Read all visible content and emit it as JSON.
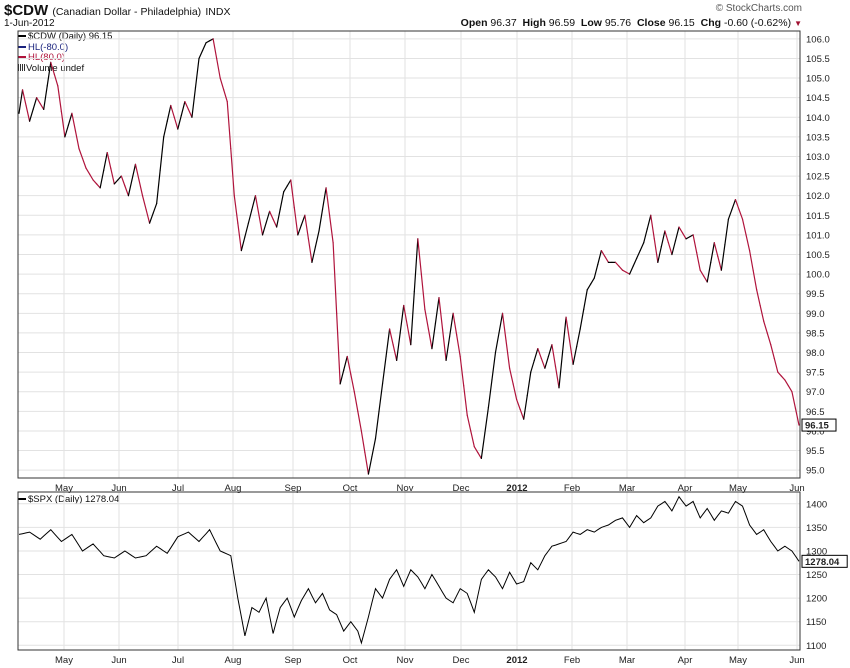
{
  "header": {
    "symbol": "$CDW",
    "name": "(Canadian Dollar - Philadelphia)",
    "exchange": "INDX",
    "date": "1-Jun-2012",
    "brand": "© StockCharts.com",
    "open_label": "Open",
    "open": "96.37",
    "high_label": "High",
    "high": "96.59",
    "low_label": "Low",
    "low": "95.76",
    "close_label": "Close",
    "close": "96.15",
    "chg_label": "Chg",
    "chg": "-0.60 (-0.62%)"
  },
  "legend": {
    "main": "$CDW (Daily) 96.15",
    "hl_down": "HL(-80.0)",
    "hl_up": "HL(80.0)",
    "volume": "Volume undef",
    "lower": "$SPX (Daily) 1278.04"
  },
  "colors": {
    "up": "#000000",
    "down": "#b0143c",
    "grid": "#e2e2e2",
    "frame": "#333333"
  },
  "chart_data": [
    {
      "type": "line",
      "series": [
        {
          "name": "$CDW (Daily)",
          "last": "96.15"
        }
      ],
      "ylim": [
        94.8,
        106.2
      ],
      "y_ticks": [
        "95.0",
        "95.5",
        "96.0",
        "96.5",
        "97.0",
        "97.5",
        "98.0",
        "98.5",
        "99.0",
        "99.5",
        "100.0",
        "100.5",
        "101.0",
        "101.5",
        "102.0",
        "102.5",
        "103.0",
        "103.5",
        "104.0",
        "104.5",
        "105.0",
        "105.5",
        "106.0"
      ],
      "x_ticks": [
        "May",
        "Jun",
        "Jul",
        "Aug",
        "Sep",
        "Oct",
        "Nov",
        "Dec",
        "2012",
        "Feb",
        "Mar",
        "Apr",
        "May",
        "Jun"
      ],
      "anchors": [
        [
          0,
          104.1
        ],
        [
          1,
          104.7
        ],
        [
          3,
          103.9
        ],
        [
          5,
          104.5
        ],
        [
          7,
          104.2
        ],
        [
          9,
          105.4
        ],
        [
          11,
          104.8
        ],
        [
          13,
          103.5
        ],
        [
          15,
          104.1
        ],
        [
          17,
          103.2
        ],
        [
          19,
          102.7
        ],
        [
          21,
          102.4
        ],
        [
          23,
          102.2
        ],
        [
          25,
          103.1
        ],
        [
          27,
          102.3
        ],
        [
          29,
          102.5
        ],
        [
          31,
          102.0
        ],
        [
          33,
          102.8
        ],
        [
          35,
          102.0
        ],
        [
          37,
          101.3
        ],
        [
          39,
          101.8
        ],
        [
          41,
          103.5
        ],
        [
          43,
          104.3
        ],
        [
          45,
          103.7
        ],
        [
          47,
          104.4
        ],
        [
          49,
          104.0
        ],
        [
          51,
          105.5
        ],
        [
          53,
          105.9
        ],
        [
          55,
          106.0
        ],
        [
          57,
          105.0
        ],
        [
          59,
          104.4
        ],
        [
          61,
          102.0
        ],
        [
          63,
          100.6
        ],
        [
          65,
          101.3
        ],
        [
          67,
          102.0
        ],
        [
          69,
          101.0
        ],
        [
          71,
          101.6
        ],
        [
          73,
          101.2
        ],
        [
          75,
          102.1
        ],
        [
          77,
          102.4
        ],
        [
          79,
          101.0
        ],
        [
          81,
          101.5
        ],
        [
          83,
          100.3
        ],
        [
          85,
          101.1
        ],
        [
          87,
          102.2
        ],
        [
          89,
          100.8
        ],
        [
          91,
          97.2
        ],
        [
          93,
          97.9
        ],
        [
          95,
          97.0
        ],
        [
          97,
          96.0
        ],
        [
          99,
          94.9
        ],
        [
          101,
          95.8
        ],
        [
          103,
          97.2
        ],
        [
          105,
          98.6
        ],
        [
          107,
          97.8
        ],
        [
          109,
          99.2
        ],
        [
          111,
          98.2
        ],
        [
          113,
          100.9
        ],
        [
          115,
          99.1
        ],
        [
          117,
          98.1
        ],
        [
          119,
          99.4
        ],
        [
          121,
          97.8
        ],
        [
          123,
          99.0
        ],
        [
          125,
          97.9
        ],
        [
          127,
          96.4
        ],
        [
          129,
          95.6
        ],
        [
          131,
          95.3
        ],
        [
          133,
          96.6
        ],
        [
          135,
          98.0
        ],
        [
          137,
          99.0
        ],
        [
          139,
          97.6
        ],
        [
          141,
          96.8
        ],
        [
          143,
          96.3
        ],
        [
          145,
          97.5
        ],
        [
          147,
          98.1
        ],
        [
          149,
          97.6
        ],
        [
          151,
          98.2
        ],
        [
          153,
          97.1
        ],
        [
          155,
          98.9
        ],
        [
          157,
          97.7
        ],
        [
          159,
          98.6
        ],
        [
          161,
          99.6
        ],
        [
          163,
          99.9
        ],
        [
          165,
          100.6
        ],
        [
          167,
          100.3
        ],
        [
          169,
          100.3
        ],
        [
          171,
          100.1
        ],
        [
          173,
          100.0
        ],
        [
          175,
          100.4
        ],
        [
          177,
          100.8
        ],
        [
          179,
          101.5
        ],
        [
          181,
          100.3
        ],
        [
          183,
          101.1
        ],
        [
          185,
          100.5
        ],
        [
          187,
          101.2
        ],
        [
          189,
          100.9
        ],
        [
          191,
          101.0
        ],
        [
          193,
          100.1
        ],
        [
          195,
          99.8
        ],
        [
          197,
          100.8
        ],
        [
          199,
          100.1
        ],
        [
          201,
          101.4
        ],
        [
          203,
          101.9
        ],
        [
          205,
          101.4
        ],
        [
          207,
          100.6
        ],
        [
          209,
          99.6
        ],
        [
          211,
          98.8
        ],
        [
          213,
          98.2
        ],
        [
          215,
          97.5
        ],
        [
          217,
          97.3
        ],
        [
          219,
          97.0
        ],
        [
          221,
          96.15
        ]
      ],
      "last_label": "96.15"
    },
    {
      "type": "line",
      "series": [
        {
          "name": "$SPX (Daily)",
          "last": "1278.04"
        }
      ],
      "ylim": [
        1090,
        1425
      ],
      "y_ticks": [
        "1100",
        "1150",
        "1200",
        "1250",
        "1300",
        "1350",
        "1400"
      ],
      "x_ticks": [
        "May",
        "Jun",
        "Jul",
        "Aug",
        "Sep",
        "Oct",
        "Nov",
        "Dec",
        "2012",
        "Feb",
        "Mar",
        "Apr",
        "May",
        "Jun"
      ],
      "anchors": [
        [
          0,
          1335
        ],
        [
          3,
          1340
        ],
        [
          6,
          1325
        ],
        [
          9,
          1345
        ],
        [
          12,
          1320
        ],
        [
          15,
          1335
        ],
        [
          18,
          1300
        ],
        [
          21,
          1315
        ],
        [
          24,
          1290
        ],
        [
          27,
          1285
        ],
        [
          30,
          1300
        ],
        [
          33,
          1285
        ],
        [
          36,
          1290
        ],
        [
          39,
          1310
        ],
        [
          42,
          1295
        ],
        [
          45,
          1330
        ],
        [
          48,
          1340
        ],
        [
          51,
          1320
        ],
        [
          54,
          1345
        ],
        [
          57,
          1300
        ],
        [
          60,
          1290
        ],
        [
          62,
          1200
        ],
        [
          64,
          1120
        ],
        [
          66,
          1180
        ],
        [
          68,
          1170
        ],
        [
          70,
          1200
        ],
        [
          72,
          1125
        ],
        [
          74,
          1180
        ],
        [
          76,
          1200
        ],
        [
          78,
          1160
        ],
        [
          80,
          1195
        ],
        [
          82,
          1220
        ],
        [
          84,
          1190
        ],
        [
          86,
          1210
        ],
        [
          88,
          1175
        ],
        [
          90,
          1165
        ],
        [
          92,
          1130
        ],
        [
          94,
          1150
        ],
        [
          96,
          1130
        ],
        [
          97,
          1105
        ],
        [
          99,
          1160
        ],
        [
          101,
          1220
        ],
        [
          103,
          1200
        ],
        [
          105,
          1240
        ],
        [
          107,
          1260
        ],
        [
          109,
          1225
        ],
        [
          111,
          1260
        ],
        [
          113,
          1245
        ],
        [
          115,
          1220
        ],
        [
          117,
          1250
        ],
        [
          119,
          1225
        ],
        [
          121,
          1200
        ],
        [
          123,
          1190
        ],
        [
          125,
          1220
        ],
        [
          127,
          1210
        ],
        [
          129,
          1170
        ],
        [
          131,
          1240
        ],
        [
          133,
          1260
        ],
        [
          135,
          1245
        ],
        [
          137,
          1220
        ],
        [
          139,
          1255
        ],
        [
          141,
          1230
        ],
        [
          143,
          1235
        ],
        [
          145,
          1275
        ],
        [
          147,
          1260
        ],
        [
          149,
          1290
        ],
        [
          151,
          1310
        ],
        [
          153,
          1315
        ],
        [
          155,
          1320
        ],
        [
          157,
          1340
        ],
        [
          159,
          1335
        ],
        [
          161,
          1345
        ],
        [
          163,
          1340
        ],
        [
          165,
          1350
        ],
        [
          167,
          1355
        ],
        [
          169,
          1365
        ],
        [
          171,
          1370
        ],
        [
          173,
          1350
        ],
        [
          175,
          1375
        ],
        [
          177,
          1360
        ],
        [
          179,
          1370
        ],
        [
          181,
          1395
        ],
        [
          183,
          1405
        ],
        [
          185,
          1385
        ],
        [
          187,
          1415
        ],
        [
          189,
          1395
        ],
        [
          191,
          1405
        ],
        [
          193,
          1370
        ],
        [
          195,
          1390
        ],
        [
          197,
          1365
        ],
        [
          199,
          1385
        ],
        [
          201,
          1380
        ],
        [
          203,
          1405
        ],
        [
          205,
          1395
        ],
        [
          207,
          1355
        ],
        [
          209,
          1335
        ],
        [
          211,
          1345
        ],
        [
          213,
          1320
        ],
        [
          215,
          1300
        ],
        [
          217,
          1310
        ],
        [
          219,
          1300
        ],
        [
          221,
          1278
        ]
      ],
      "last_label": "1278.04"
    }
  ]
}
